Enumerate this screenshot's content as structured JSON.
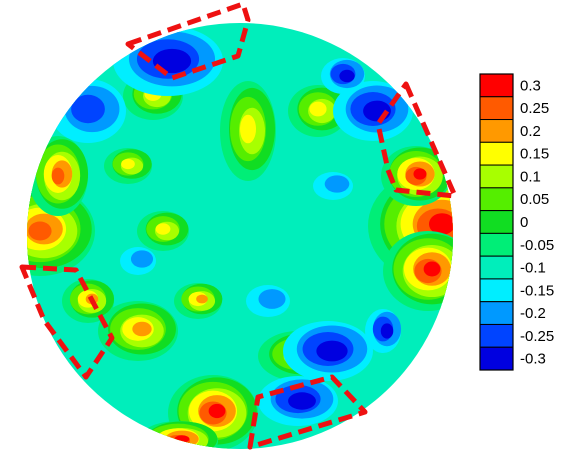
{
  "chart_data": {
    "type": "heatmap",
    "title": "",
    "xlabel": "",
    "ylabel": "",
    "grid": false,
    "legend_position": "right",
    "shape": "circular wafer map",
    "colorbar": {
      "ticks": [
        "0.3",
        "0.25",
        "0.2",
        "0.15",
        "0.1",
        "0.05",
        "0",
        "-0.05",
        "-0.1",
        "-0.15",
        "-0.2",
        "-0.25",
        "-0.3"
      ],
      "min": -0.3,
      "max": 0.3,
      "bands": [
        {
          "value": 0.3,
          "color": "#ff0000"
        },
        {
          "value": 0.25,
          "color": "#ff5a00"
        },
        {
          "value": 0.2,
          "color": "#ff9900"
        },
        {
          "value": 0.15,
          "color": "#ffff00"
        },
        {
          "value": 0.1,
          "color": "#a8ff00"
        },
        {
          "value": 0.05,
          "color": "#55ee00"
        },
        {
          "value": 0.0,
          "color": "#11dd22"
        },
        {
          "value": -0.05,
          "color": "#00ee77"
        },
        {
          "value": -0.1,
          "color": "#00eebb"
        },
        {
          "value": -0.15,
          "color": "#00eeff"
        },
        {
          "value": -0.2,
          "color": "#0099ff"
        },
        {
          "value": -0.25,
          "color": "#0044ff"
        },
        {
          "value": -0.3,
          "color": "#0000e0"
        }
      ]
    },
    "high_regions": [
      {
        "location": "right edge",
        "value": 0.3
      },
      {
        "location": "left edge",
        "value": 0.25
      },
      {
        "location": "bottom edge, left of centre",
        "value": 0.3
      },
      {
        "location": "centre-right upper",
        "value": 0.15
      },
      {
        "location": "centre-left upper",
        "value": 0.15
      },
      {
        "location": "lower left",
        "value": 0.2
      }
    ],
    "low_regions": [
      {
        "location": "top, left of centre",
        "value": -0.3
      },
      {
        "location": "upper right",
        "value": -0.3
      },
      {
        "location": "bottom right",
        "value": -0.3
      },
      {
        "location": "upper left edge",
        "value": -0.25
      },
      {
        "location": "right of centre",
        "value": -0.2
      }
    ],
    "highlighted_regions": [
      {
        "location": "top",
        "shape": "dashed red outline"
      },
      {
        "location": "upper right",
        "shape": "dashed red outline"
      },
      {
        "location": "left",
        "shape": "dashed red outline"
      },
      {
        "location": "bottom",
        "shape": "dashed red outline"
      }
    ],
    "highlight_color": "#ee1111"
  }
}
